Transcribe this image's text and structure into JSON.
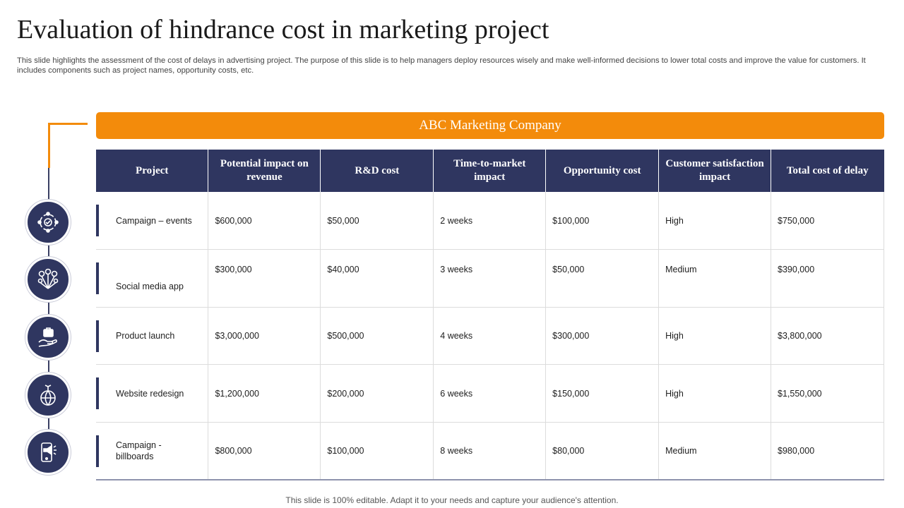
{
  "title": "Evaluation of hindrance cost in marketing project",
  "subtitle": "This slide highlights the assessment of the cost of delays in advertising project. The purpose of this slide is to help managers deploy resources wisely and make well-informed decisions to lower total costs and improve the value for customers. It includes components such as project names, opportunity costs, etc.",
  "banner": "ABC Marketing Company",
  "table": {
    "headers": [
      "Project",
      "Potential impact on revenue",
      "R&D cost",
      "Time-to-market impact",
      "Opportunity cost",
      "Customer satisfaction impact",
      "Total cost of delay"
    ],
    "rows": [
      [
        "Campaign – events",
        "$600,000",
        "$50,000",
        "2 weeks",
        "$100,000",
        "High",
        "$750,000"
      ],
      [
        "Social media app",
        "$300,000",
        "$40,000",
        "3 weeks",
        "$50,000",
        "Medium",
        "$390,000"
      ],
      [
        "Product launch",
        "$3,000,000",
        "$500,000",
        "4 weeks",
        "$300,000",
        "High",
        "$3,800,000"
      ],
      [
        "Website redesign",
        "$1,200,000",
        "$200,000",
        "6 weeks",
        "$150,000",
        "High",
        "$1,550,000"
      ],
      [
        "Campaign - billboards",
        "$800,000",
        "$100,000",
        "8 weeks",
        "$80,000",
        "Medium",
        "$980,000"
      ]
    ]
  },
  "icons": [
    "event-cycle-icon",
    "social-network-icon",
    "product-launch-icon",
    "website-globe-icon",
    "mobile-billboard-icon"
  ],
  "colors": {
    "navy": "#2f3660",
    "orange": "#f38b0b"
  },
  "footer": "This slide is 100% editable. Adapt it to your needs and capture your audience's attention."
}
